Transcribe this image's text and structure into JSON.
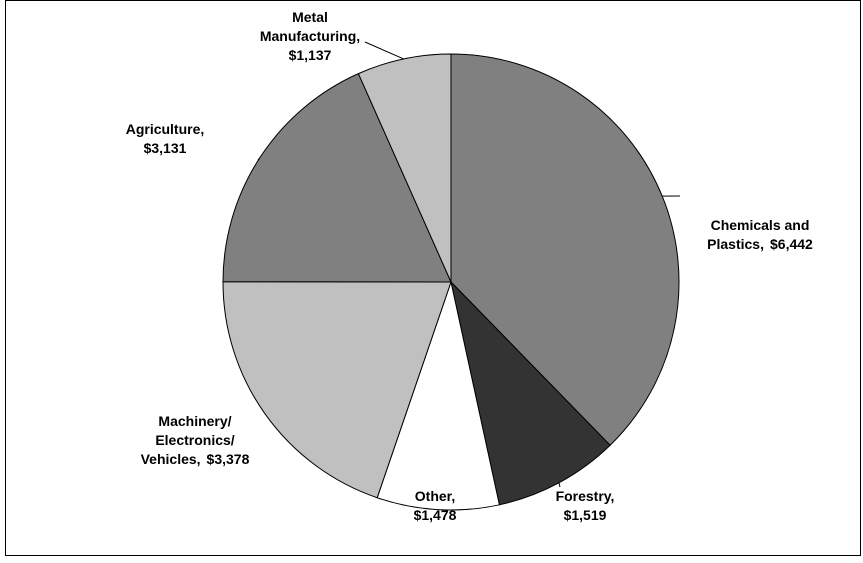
{
  "chart_data": {
    "type": "pie",
    "categories": [
      "Chemicals and\nPlastics,",
      "Forestry,",
      "Other,",
      "Machinery/\nElectronics/\nVehicles,",
      "Agriculture,",
      "Metal\nManufacturing,"
    ],
    "values": [
      6442,
      1519,
      1478,
      3378,
      3131,
      1137
    ],
    "value_labels": [
      "$6,442",
      "$1,519",
      "$1,478",
      "$3,378",
      "$3,131",
      "$1,137"
    ],
    "colors": [
      "#808080",
      "#333333",
      "#ffffff",
      "#c0c0c0",
      "#808080",
      "#c0c0c0"
    ]
  }
}
